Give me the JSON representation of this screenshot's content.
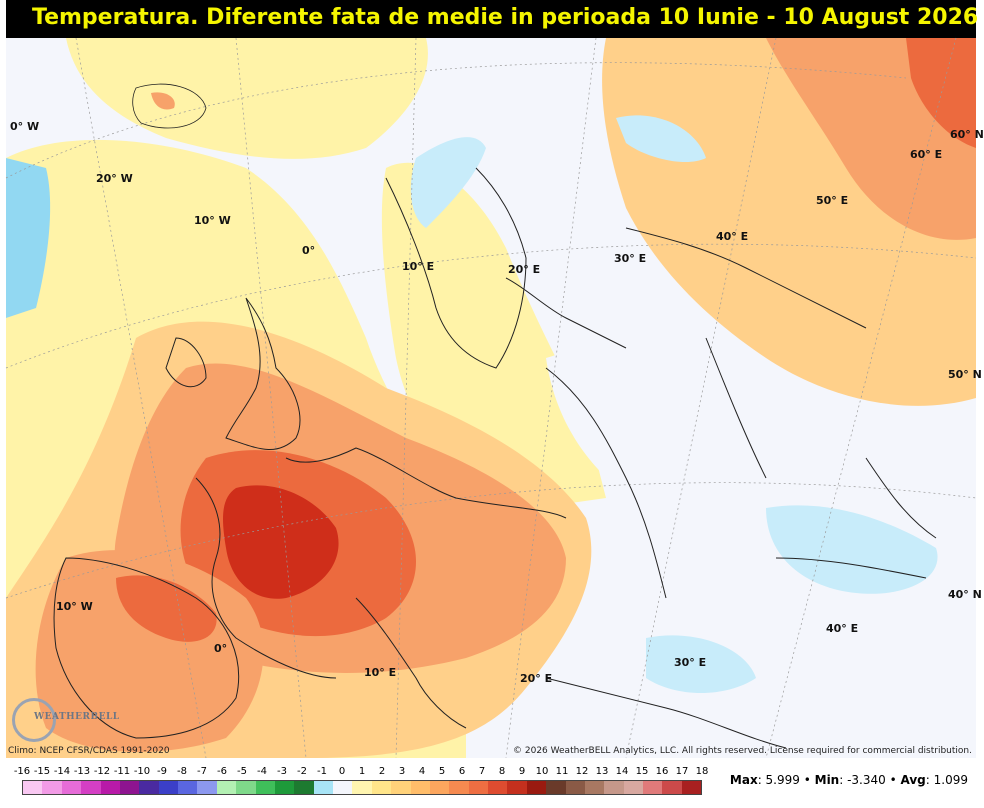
{
  "title": "Temperatura. Diferente fata de medie in perioada 10 Iunie - 10 August 2026",
  "colors": {
    "title_bg": "#000000",
    "title_text": "#f5f500",
    "near_zero": "#f4f6fc",
    "warm_light": "#fff3a8",
    "warm_med": "#ffd08a",
    "warm_strong": "#f7a26a",
    "hot": "#ec6a3e",
    "hottest": "#cf2e1a",
    "cool_light": "#c8ecfa",
    "cool_med": "#92d8f2"
  },
  "map_labels": {
    "lon_0w": "0° W",
    "lon_20w": "20° W",
    "lon_10w_top": "10° W",
    "lon_0_top": "0°",
    "lon_10e_top": "10° E",
    "lon_20e_top": "20° E",
    "lon_30e_top": "30° E",
    "lon_40e_top": "40° E",
    "lon_50e": "50° E",
    "lon_60e": "60° E",
    "lat_60n": "60° N",
    "lat_50n": "50° N",
    "lat_40n": "40° N",
    "lon_10w_bottom": "10° W",
    "lon_0_bottom": "0°",
    "lon_10e_bottom": "10° E",
    "lon_20e_bottom": "20° E",
    "lon_30e_bottom": "30° E",
    "lon_40e_bottom": "40° E"
  },
  "footer": {
    "climo": "Climo: NCEP CFSR/CDAS 1991-2020",
    "copyright": "© 2026 WeatherBELL Analytics, LLC. All rights reserved. License required for commercial distribution."
  },
  "logo": {
    "text": "WEATHERBELL"
  },
  "legend": {
    "ticks": [
      "-16",
      "-15",
      "-14",
      "-13",
      "-12",
      "-11",
      "-10",
      "-9",
      "-8",
      "-7",
      "-6",
      "-5",
      "-4",
      "-3",
      "-2",
      "-1",
      "0",
      "1",
      "2",
      "3",
      "4",
      "5",
      "6",
      "7",
      "8",
      "9",
      "10",
      "11",
      "12",
      "13",
      "14",
      "15",
      "16",
      "17",
      "18"
    ],
    "colors": [
      "#f9c8f2",
      "#f29be6",
      "#e66cd8",
      "#d43fc4",
      "#b81aa8",
      "#8e1490",
      "#4a2aa0",
      "#3b3fc8",
      "#5a66e0",
      "#8c98ef",
      "#b3f0b3",
      "#7fd98a",
      "#3fbf5a",
      "#1e9a3a",
      "#1d7a30",
      "#a8e4f6",
      "#f4f6fc",
      "#fff5b0",
      "#ffe58a",
      "#ffd27a",
      "#ffbd6a",
      "#fca65e",
      "#f68a50",
      "#ee6e42",
      "#de4c30",
      "#c4301e",
      "#9a1a10",
      "#6a3a2a",
      "#8a5a46",
      "#a87862",
      "#c6988a",
      "#d8a8a0",
      "#e07a7a",
      "#cc4a4a",
      "#a82020"
    ]
  },
  "stats": {
    "max_label": "Max",
    "max_value": "5.999",
    "min_label": "Min",
    "min_value": "-3.340",
    "avg_label": "Avg",
    "avg_value": "1.099"
  }
}
